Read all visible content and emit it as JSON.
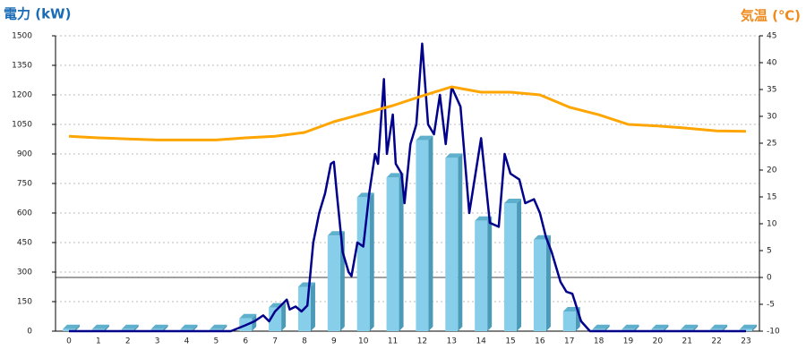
{
  "chart_data": {
    "type": "bar",
    "y_title": "電力 (kW)",
    "y2_title": "気温 (℃)",
    "categories": [
      0,
      1,
      2,
      3,
      4,
      5,
      6,
      7,
      8,
      9,
      10,
      11,
      12,
      13,
      14,
      15,
      16,
      17,
      18,
      19,
      20,
      21,
      22,
      23
    ],
    "ylim": [
      0,
      1500
    ],
    "yticks": [
      0,
      150,
      300,
      450,
      600,
      750,
      900,
      1050,
      1200,
      1350,
      1500
    ],
    "y2lim": [
      -10,
      45
    ],
    "y2ticks": [
      -10,
      -5,
      0,
      5,
      10,
      15,
      20,
      25,
      30,
      35,
      40,
      45
    ],
    "grid": true,
    "series": [
      {
        "type": "bar",
        "color": "#87ceeb",
        "values": [
          10,
          10,
          10,
          10,
          10,
          10,
          65,
          120,
          225,
          485,
          680,
          780,
          970,
          880,
          560,
          650,
          465,
          100,
          10,
          10,
          10,
          10,
          10,
          10
        ]
      },
      {
        "type": "line",
        "color": "#00008b",
        "x": [
          0,
          5.5,
          6,
          6.3,
          6.6,
          6.8,
          7,
          7.2,
          7.4,
          7.5,
          7.7,
          7.9,
          8.1,
          8.3,
          8.5,
          8.7,
          8.9,
          9.0,
          9.1,
          9.3,
          9.5,
          9.6,
          9.8,
          10.0,
          10.2,
          10.4,
          10.5,
          10.7,
          10.8,
          11.0,
          11.1,
          11.3,
          11.4,
          11.6,
          11.8,
          12.0,
          12.2,
          12.4,
          12.6,
          12.8,
          13.0,
          13.3,
          13.6,
          14.0,
          14.3,
          14.6,
          14.8,
          15.0,
          15.3,
          15.5,
          15.8,
          16.0,
          16.2,
          16.4,
          16.7,
          16.9,
          17.1,
          17.4,
          17.7,
          23
        ],
        "values": [
          0,
          0,
          30,
          50,
          80,
          50,
          100,
          130,
          160,
          110,
          125,
          100,
          130,
          450,
          600,
          700,
          850,
          860,
          700,
          400,
          300,
          280,
          450,
          430,
          700,
          900,
          850,
          1280,
          900,
          1100,
          850,
          800,
          650,
          950,
          1050,
          1460,
          1050,
          1000,
          1200,
          950,
          1240,
          1140,
          600,
          980,
          550,
          530,
          900,
          800,
          770,
          650,
          670,
          600,
          480,
          400,
          250,
          200,
          190,
          50,
          0,
          0
        ]
      },
      {
        "type": "line",
        "color": "#ffa500",
        "axis": "y2",
        "values": [
          26.3,
          26,
          25.8,
          25.6,
          25.6,
          25.6,
          26,
          26.3,
          27,
          29,
          30.5,
          32,
          33.8,
          35.5,
          34.5,
          34.5,
          34,
          31.7,
          30.3,
          28.5,
          28.2,
          27.8,
          27.3,
          27.2
        ]
      }
    ]
  }
}
